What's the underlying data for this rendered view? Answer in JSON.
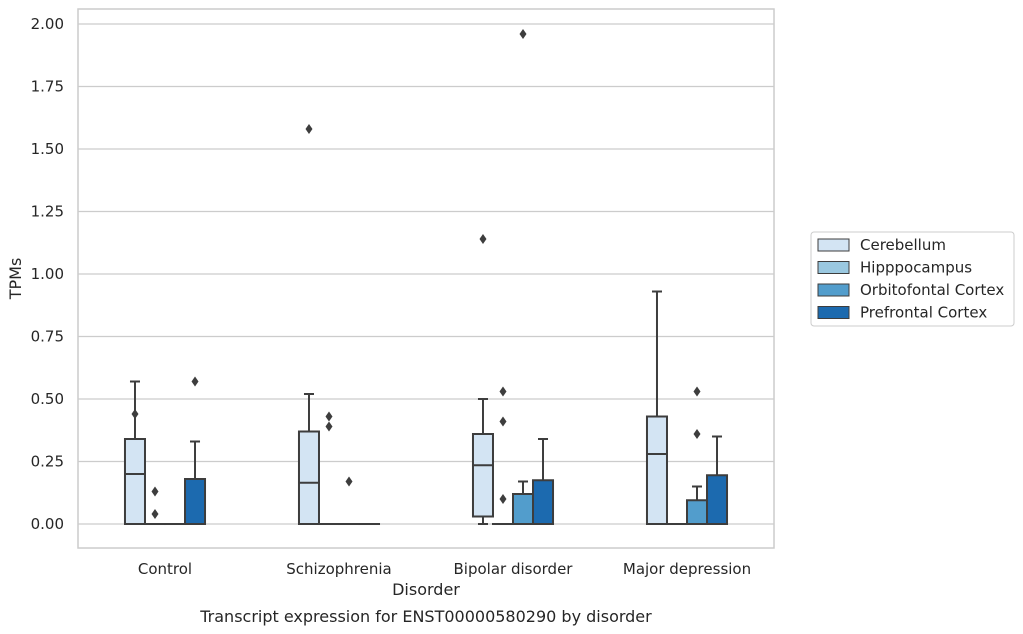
{
  "chart_data": {
    "type": "box",
    "title": "",
    "xlabel": "Disorder",
    "ylabel": "TPMs",
    "caption": "Transcript expression for ENST00000580290 by disorder",
    "categories": [
      "Control",
      "Schizophrenia",
      "Bipolar disorder",
      "Major depression"
    ],
    "ylim": [
      -0.1,
      2.06
    ],
    "yticks": [
      "0.00",
      "0.25",
      "0.50",
      "0.75",
      "1.00",
      "1.25",
      "1.50",
      "1.75",
      "2.00"
    ],
    "ytick_values": [
      0,
      0.25,
      0.5,
      0.75,
      1.0,
      1.25,
      1.5,
      1.75,
      2.0
    ],
    "grid": true,
    "legend_position": "right",
    "series": [
      {
        "name": "Cerebellum",
        "color": "#d3e4f3",
        "boxes": [
          {
            "q1": 0.0,
            "median": 0.2,
            "q3": 0.34,
            "whislo": 0.0,
            "whishi": 0.57,
            "fliers": [
              0.44
            ]
          },
          {
            "q1": 0.0,
            "median": 0.165,
            "q3": 0.37,
            "whislo": 0.0,
            "whishi": 0.52,
            "fliers": [
              1.58
            ]
          },
          {
            "q1": 0.03,
            "median": 0.235,
            "q3": 0.36,
            "whislo": 0.0,
            "whishi": 0.5,
            "fliers": [
              1.14
            ]
          },
          {
            "q1": 0.0,
            "median": 0.28,
            "q3": 0.43,
            "whislo": 0.0,
            "whishi": 0.93,
            "fliers": []
          }
        ]
      },
      {
        "name": "Hipppocampus",
        "color": "#9ac8e0",
        "boxes": [
          {
            "q1": 0.0,
            "median": 0.0,
            "q3": 0.0,
            "whislo": 0.0,
            "whishi": 0.0,
            "fliers": [
              0.13,
              0.04
            ]
          },
          {
            "q1": 0.0,
            "median": 0.0,
            "q3": 0.0,
            "whislo": 0.0,
            "whishi": 0.0,
            "fliers": [
              0.43,
              0.39
            ]
          },
          {
            "q1": 0.0,
            "median": 0.0,
            "q3": 0.0,
            "whislo": 0.0,
            "whishi": 0.0,
            "fliers": [
              0.53,
              0.41,
              0.1
            ]
          },
          {
            "q1": 0.0,
            "median": 0.0,
            "q3": 0.0,
            "whislo": 0.0,
            "whishi": 0.0,
            "fliers": []
          }
        ]
      },
      {
        "name": "Orbitofontal Cortex",
        "color": "#529dcc",
        "boxes": [
          {
            "q1": 0.0,
            "median": 0.0,
            "q3": 0.0,
            "whislo": 0.0,
            "whishi": 0.0,
            "fliers": []
          },
          {
            "q1": 0.0,
            "median": 0.0,
            "q3": 0.0,
            "whislo": 0.0,
            "whishi": 0.0,
            "fliers": [
              0.17
            ]
          },
          {
            "q1": 0.0,
            "median": 0.0,
            "q3": 0.12,
            "whislo": 0.0,
            "whishi": 0.17,
            "fliers": [
              1.96
            ]
          },
          {
            "q1": 0.0,
            "median": 0.0,
            "q3": 0.095,
            "whislo": 0.0,
            "whishi": 0.15,
            "fliers": [
              0.53,
              0.36
            ]
          }
        ]
      },
      {
        "name": "Prefrontal Cortex",
        "color": "#1c6aaf",
        "boxes": [
          {
            "q1": 0.0,
            "median": 0.0,
            "q3": 0.18,
            "whislo": 0.0,
            "whishi": 0.33,
            "fliers": [
              0.57
            ]
          },
          {
            "q1": 0.0,
            "median": 0.0,
            "q3": 0.0,
            "whislo": 0.0,
            "whishi": 0.0,
            "fliers": []
          },
          {
            "q1": 0.0,
            "median": 0.0,
            "q3": 0.175,
            "whislo": 0.0,
            "whishi": 0.34,
            "fliers": []
          },
          {
            "q1": 0.0,
            "median": 0.0,
            "q3": 0.195,
            "whislo": 0.0,
            "whishi": 0.35,
            "fliers": []
          }
        ]
      }
    ]
  }
}
